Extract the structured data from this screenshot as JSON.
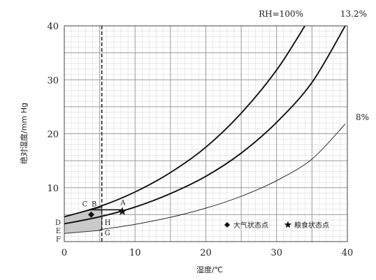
{
  "chart_data": {
    "type": "line",
    "title": "",
    "xlabel": "湿度/℃",
    "ylabel": "绝对湿度/mm Hg",
    "xlim": [
      0,
      40
    ],
    "ylim": [
      0,
      40
    ],
    "x_ticks": [
      "0",
      "10",
      "20",
      "30",
      "40"
    ],
    "y_ticks": [
      "10",
      "20",
      "30",
      "40"
    ],
    "grid": true,
    "series": [
      {
        "name": "RH=100%",
        "style": "thick",
        "x": [
          0,
          5,
          10,
          15,
          20,
          25,
          30,
          34
        ],
        "y": [
          4.6,
          6.5,
          9.2,
          12.8,
          17.5,
          23.8,
          31.8,
          40
        ]
      },
      {
        "name": "13.2%",
        "style": "thick",
        "x": [
          0,
          5,
          10,
          15,
          20,
          25,
          30,
          35,
          39.7
        ],
        "y": [
          3.3,
          4.6,
          6.4,
          8.9,
          12.1,
          16.4,
          22.1,
          29.5,
          40
        ]
      },
      {
        "name": "8%",
        "style": "thin",
        "x": [
          5,
          10,
          15,
          20,
          25,
          30,
          35,
          39.7
        ],
        "y": [
          2.2,
          3.2,
          4.5,
          6.2,
          8.4,
          11.3,
          15.3,
          21.8
        ]
      }
    ],
    "shaded_band": {
      "x": [
        0,
        5.3
      ],
      "upper": [
        4.6,
        6.4
      ],
      "lower": [
        1.5,
        2.1
      ]
    },
    "vertical_dashed_x": 5.3,
    "annotations": [
      {
        "label": "A",
        "x": 8.3,
        "y": 5.9
      },
      {
        "label": "B",
        "x": 5.3,
        "y": 5.9
      },
      {
        "label": "C",
        "x": 3.6,
        "y": 5.9
      },
      {
        "label": "D",
        "x": 0,
        "y": 3.6
      },
      {
        "label": "E",
        "x": 0,
        "y": 2.1
      },
      {
        "label": "F",
        "x": 0,
        "y": 0.5
      },
      {
        "label": "G",
        "x": 5.3,
        "y": 1.7
      },
      {
        "label": "H",
        "x": 5.3,
        "y": 3.6
      }
    ],
    "points": [
      {
        "marker": "diamond",
        "x": 3.8,
        "y": 5.0
      },
      {
        "marker": "star",
        "x": 8.2,
        "y": 5.6
      }
    ],
    "legend": {
      "placement": "bottom-right",
      "entries": [
        {
          "marker": "diamond",
          "label": "大气状态点"
        },
        {
          "marker": "star",
          "label": "粮食状态点"
        }
      ]
    }
  }
}
